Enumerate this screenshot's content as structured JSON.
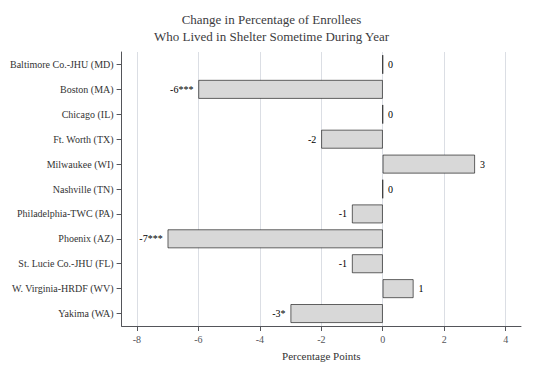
{
  "chart_data": {
    "type": "bar",
    "orientation": "horizontal",
    "title": "Change in Percentage of Enrollees\nWho Lived in Shelter Sometime During Year",
    "xlabel": "Percentage Points",
    "categories": [
      "Baltimore Co.-JHU (MD)",
      "Boston (MA)",
      "Chicago (IL)",
      "Ft. Worth (TX)",
      "Milwaukee (WI)",
      "Nashville (TN)",
      "Philadelphia-TWC (PA)",
      "Phoenix (AZ)",
      "St. Lucie Co.-JHU (FL)",
      "W. Virginia-HRDF (WV)",
      "Yakima (WA)"
    ],
    "values": [
      0,
      -6,
      0,
      -2,
      3,
      0,
      -1,
      -7,
      -1,
      1,
      -3
    ],
    "value_labels": [
      "0",
      "-6***",
      "0",
      "-2",
      "3",
      "0",
      "-1",
      "-7***",
      "-1",
      "1",
      "-3*"
    ],
    "data_labels": true,
    "color": "#d8d8d8",
    "xlim": [
      -8.5,
      4.5
    ],
    "xticks": [
      -8,
      -6,
      -4,
      -2,
      0,
      2,
      4
    ],
    "grid": true
  }
}
